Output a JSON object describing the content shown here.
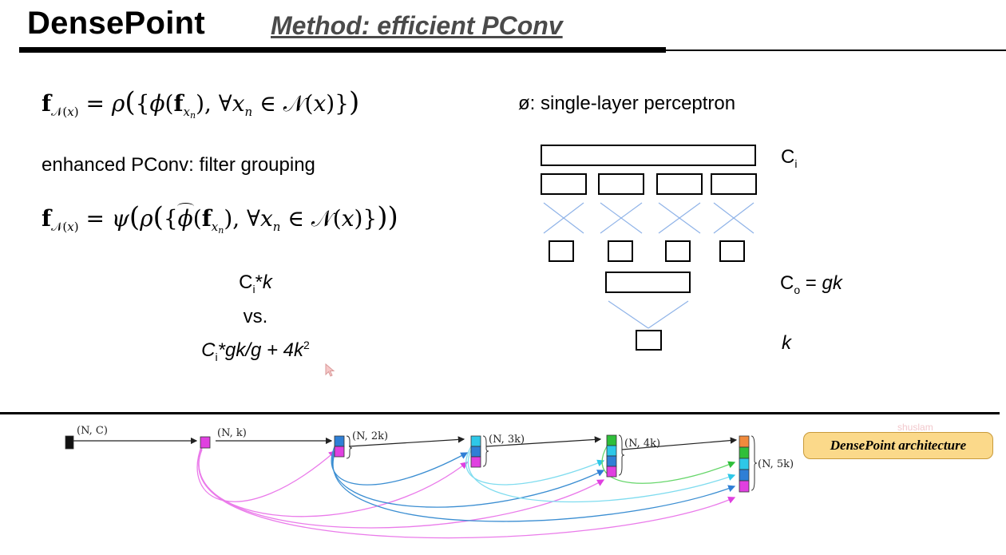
{
  "header": {
    "title": "DensePoint",
    "subtitle": "Method: efficient PConv"
  },
  "left": {
    "enhanced_label": "enhanced PConv: filter grouping",
    "cost_a": "C",
    "cost_a_sub": "i",
    "cost_a_tail": "*",
    "cost_a_k": "k",
    "versus": "vs.",
    "cost_b_c": "C",
    "cost_b_sub": "i",
    "cost_b_mid": "*gk/g + 4k",
    "cost_b_exp": "2"
  },
  "diagram": {
    "phi_label": "ø: single-layer perceptron",
    "ci_label": "C",
    "ci_sub": "i",
    "co_label": "C",
    "co_sub": "o",
    "co_tail": " = ",
    "co_gk": "gk",
    "k_label": "k"
  },
  "architecture": {
    "badge": "DensePoint architecture",
    "watermark": "shuslam",
    "stage_labels": [
      "(N, C)",
      "(N, k)",
      "(N, 2k)",
      "(N, 3k)",
      "(N, 4k)",
      "(N, 5k)"
    ],
    "colors": {
      "magenta": "#e040e0",
      "blue": "#2f7fd6",
      "cyan": "#2ec8e8",
      "green": "#2fbf3a",
      "orange": "#f08a3c",
      "link_magenta": "#ea7bea",
      "link_blue": "#3b8ed2",
      "link_cyan": "#7fdcef",
      "link_green": "#66d66a"
    }
  },
  "colors": {
    "diagram_lines": "#8fb3e8",
    "badge_bg": "#fbd98a"
  }
}
